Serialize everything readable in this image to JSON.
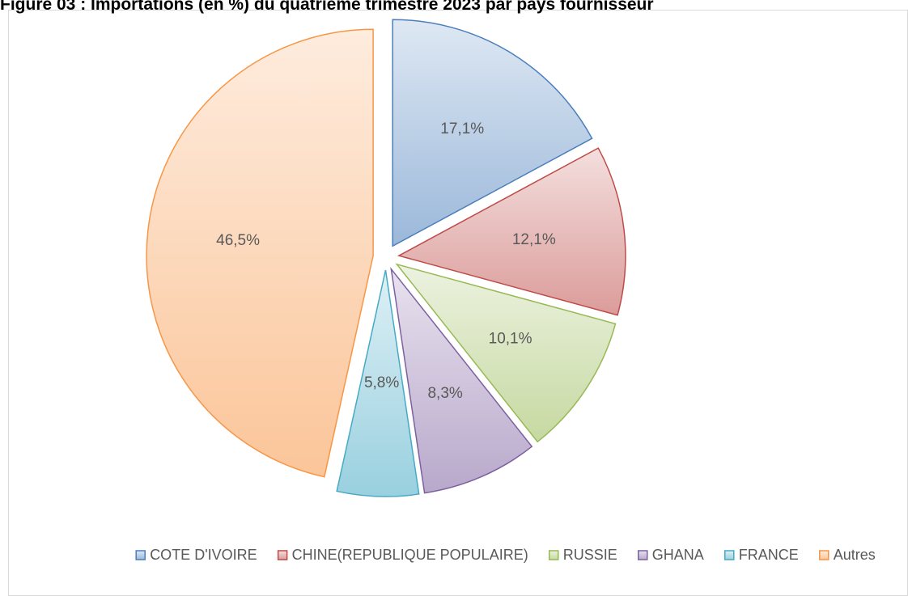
{
  "chart_data": {
    "type": "pie",
    "title": "Figure 03 : Importations (en %) du quatrième trimestre 2023 par pays fournisseur",
    "categories": [
      "COTE D'IVOIRE",
      "CHINE(REPUBLIQUE POPULAIRE)",
      "RUSSIE",
      "GHANA",
      "FRANCE",
      "Autres"
    ],
    "values": [
      17.1,
      12.1,
      10.1,
      8.3,
      5.8,
      46.5
    ],
    "value_labels": [
      "17,1%",
      "12,1%",
      "10,1%",
      "8,3%",
      "5,8%",
      "46,5%"
    ],
    "colors": [
      "#4a7ebb",
      "#be4b48",
      "#98b954",
      "#7d60a0",
      "#46aac5",
      "#f79646"
    ],
    "legend": "bottom"
  }
}
